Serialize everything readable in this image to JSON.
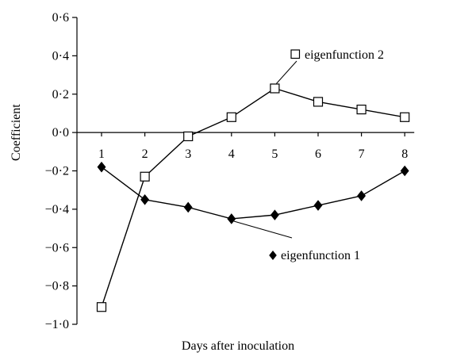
{
  "chart_data": {
    "type": "line",
    "title": "",
    "xlabel": "Days after inoculation",
    "ylabel": "Coefficient",
    "categories": [
      1,
      2,
      3,
      4,
      5,
      6,
      7,
      8
    ],
    "x_tick_labels": [
      "1",
      "2",
      "3",
      "4",
      "5",
      "6",
      "7",
      "8"
    ],
    "ylim": [
      -1.0,
      0.6
    ],
    "y_ticks": [
      0.6,
      0.4,
      0.2,
      0.0,
      -0.2,
      -0.4,
      -0.6,
      -0.8,
      -1.0
    ],
    "y_tick_labels": [
      "0·6",
      "0·4",
      "0·2",
      "0·0",
      "−0·2",
      "−0·4",
      "−0·6",
      "−0·8",
      "−1·0"
    ],
    "grid": false,
    "series": [
      {
        "name": "eigenfunction 1",
        "marker": "diamond-filled",
        "color": "#000000",
        "values": [
          -0.18,
          -0.35,
          -0.39,
          -0.45,
          -0.43,
          -0.38,
          -0.33,
          -0.2
        ]
      },
      {
        "name": "eigenfunction 2",
        "marker": "square-open",
        "color": "#000000",
        "values": [
          -0.91,
          -0.23,
          -0.02,
          0.08,
          0.23,
          0.16,
          0.12,
          0.08
        ]
      }
    ],
    "annotations": [
      {
        "text": "eigenfunction 2",
        "series": 1
      },
      {
        "text": "eigenfunction 1",
        "series": 0
      }
    ]
  }
}
